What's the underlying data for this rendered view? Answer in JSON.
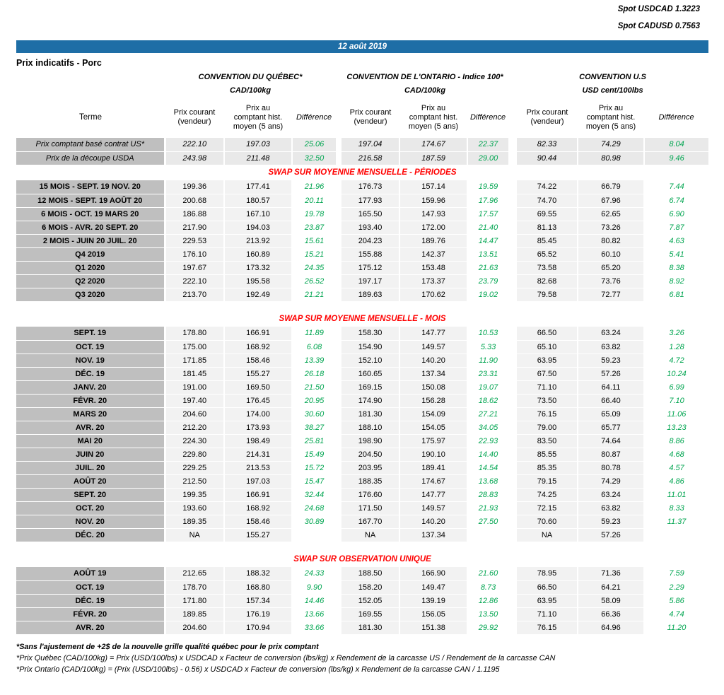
{
  "colors": {
    "banner_blue": "#1E6EA6",
    "section_red": "#FF0000",
    "diff_green": "#00A550",
    "label_gray": "#BFBFBF",
    "cell_gray": "#F2F2F2",
    "summary_gray": "#E9E9E9"
  },
  "spot": {
    "usdcad": "Spot USDCAD 1.3223",
    "cadusd": "Spot CADUSD 0.7563"
  },
  "date_banner": "12 août 2019",
  "page_title": "Prix indicatifs - Porc",
  "conventions": [
    {
      "title": "CONVENTION DU QUÉBEC*",
      "unit": "CAD/100kg"
    },
    {
      "title": "CONVENTION DE L'ONTARIO - Indice 100*",
      "unit": "CAD/100kg"
    },
    {
      "title": "CONVENTION U.S",
      "unit": "USD cent/100lbs"
    }
  ],
  "column_headers": {
    "terme": "Terme",
    "prix_courant": "Prix courant\n(vendeur)",
    "prix_comptant": "Prix au\ncomptant hist.\nmoyen (5 ans)",
    "difference": "Différence"
  },
  "summary_rows": [
    {
      "label": "Prix comptant basé contrat US*",
      "values": [
        "222.10",
        "197.03",
        "25.06",
        "197.04",
        "174.67",
        "22.37",
        "82.33",
        "74.29",
        "8.04"
      ]
    },
    {
      "label": "Prix de la découpe USDA",
      "values": [
        "243.98",
        "211.48",
        "32.50",
        "216.58",
        "187.59",
        "29.00",
        "90.44",
        "80.98",
        "9.46"
      ]
    }
  ],
  "sections": [
    {
      "title": "SWAP SUR MOYENNE MENSUELLE - PÉRIODES",
      "rows": [
        {
          "label": "15 MOIS -  SEPT. 19 NOV. 20",
          "values": [
            "199.36",
            "177.41",
            "21.96",
            "176.73",
            "157.14",
            "19.59",
            "74.22",
            "66.79",
            "7.44"
          ]
        },
        {
          "label": "12 MOIS -  SEPT. 19 AOÛT 20",
          "values": [
            "200.68",
            "180.57",
            "20.11",
            "177.93",
            "159.96",
            "17.96",
            "74.70",
            "67.96",
            "6.74"
          ]
        },
        {
          "label": "6 MOIS -  OCT. 19 MARS 20",
          "values": [
            "186.88",
            "167.10",
            "19.78",
            "165.50",
            "147.93",
            "17.57",
            "69.55",
            "62.65",
            "6.90"
          ]
        },
        {
          "label": "6 MOIS -  AVR. 20 SEPT. 20",
          "values": [
            "217.90",
            "194.03",
            "23.87",
            "193.40",
            "172.00",
            "21.40",
            "81.13",
            "73.26",
            "7.87"
          ]
        },
        {
          "label": "2 MOIS -  JUIN 20  JUIL. 20",
          "values": [
            "229.53",
            "213.92",
            "15.61",
            "204.23",
            "189.76",
            "14.47",
            "85.45",
            "80.82",
            "4.63"
          ]
        },
        {
          "label": "Q4 2019",
          "values": [
            "176.10",
            "160.89",
            "15.21",
            "155.88",
            "142.37",
            "13.51",
            "65.52",
            "60.10",
            "5.41"
          ]
        },
        {
          "label": "Q1 2020",
          "values": [
            "197.67",
            "173.32",
            "24.35",
            "175.12",
            "153.48",
            "21.63",
            "73.58",
            "65.20",
            "8.38"
          ]
        },
        {
          "label": "Q2 2020",
          "values": [
            "222.10",
            "195.58",
            "26.52",
            "197.17",
            "173.37",
            "23.79",
            "82.68",
            "73.76",
            "8.92"
          ]
        },
        {
          "label": "Q3 2020",
          "values": [
            "213.70",
            "192.49",
            "21.21",
            "189.63",
            "170.62",
            "19.02",
            "79.58",
            "72.77",
            "6.81"
          ]
        }
      ]
    },
    {
      "title": "SWAP SUR MOYENNE MENSUELLE - MOIS",
      "rows": [
        {
          "label": "SEPT. 19",
          "values": [
            "178.80",
            "166.91",
            "11.89",
            "158.30",
            "147.77",
            "10.53",
            "66.50",
            "63.24",
            "3.26"
          ]
        },
        {
          "label": "OCT. 19",
          "values": [
            "175.00",
            "168.92",
            "6.08",
            "154.90",
            "149.57",
            "5.33",
            "65.10",
            "63.82",
            "1.28"
          ]
        },
        {
          "label": "NOV. 19",
          "values": [
            "171.85",
            "158.46",
            "13.39",
            "152.10",
            "140.20",
            "11.90",
            "63.95",
            "59.23",
            "4.72"
          ]
        },
        {
          "label": "DÉC. 19",
          "values": [
            "181.45",
            "155.27",
            "26.18",
            "160.65",
            "137.34",
            "23.31",
            "67.50",
            "57.26",
            "10.24"
          ]
        },
        {
          "label": "JANV. 20",
          "values": [
            "191.00",
            "169.50",
            "21.50",
            "169.15",
            "150.08",
            "19.07",
            "71.10",
            "64.11",
            "6.99"
          ]
        },
        {
          "label": "FÉVR. 20",
          "values": [
            "197.40",
            "176.45",
            "20.95",
            "174.90",
            "156.28",
            "18.62",
            "73.50",
            "66.40",
            "7.10"
          ]
        },
        {
          "label": "MARS 20",
          "values": [
            "204.60",
            "174.00",
            "30.60",
            "181.30",
            "154.09",
            "27.21",
            "76.15",
            "65.09",
            "11.06"
          ]
        },
        {
          "label": "AVR. 20",
          "values": [
            "212.20",
            "173.93",
            "38.27",
            "188.10",
            "154.05",
            "34.05",
            "79.00",
            "65.77",
            "13.23"
          ]
        },
        {
          "label": "MAI 20",
          "values": [
            "224.30",
            "198.49",
            "25.81",
            "198.90",
            "175.97",
            "22.93",
            "83.50",
            "74.64",
            "8.86"
          ]
        },
        {
          "label": "JUIN 20",
          "values": [
            "229.80",
            "214.31",
            "15.49",
            "204.50",
            "190.10",
            "14.40",
            "85.55",
            "80.87",
            "4.68"
          ]
        },
        {
          "label": "JUIL. 20",
          "values": [
            "229.25",
            "213.53",
            "15.72",
            "203.95",
            "189.41",
            "14.54",
            "85.35",
            "80.78",
            "4.57"
          ]
        },
        {
          "label": "AOÛT 20",
          "values": [
            "212.50",
            "197.03",
            "15.47",
            "188.35",
            "174.67",
            "13.68",
            "79.15",
            "74.29",
            "4.86"
          ]
        },
        {
          "label": "SEPT. 20",
          "values": [
            "199.35",
            "166.91",
            "32.44",
            "176.60",
            "147.77",
            "28.83",
            "74.25",
            "63.24",
            "11.01"
          ]
        },
        {
          "label": "OCT. 20",
          "values": [
            "193.60",
            "168.92",
            "24.68",
            "171.50",
            "149.57",
            "21.93",
            "72.15",
            "63.82",
            "8.33"
          ]
        },
        {
          "label": "NOV. 20",
          "values": [
            "189.35",
            "158.46",
            "30.89",
            "167.70",
            "140.20",
            "27.50",
            "70.60",
            "59.23",
            "11.37"
          ]
        },
        {
          "label": "DÉC. 20",
          "values": [
            "NA",
            "155.27",
            "",
            "NA",
            "137.34",
            "",
            "NA",
            "57.26",
            ""
          ]
        }
      ]
    },
    {
      "title": "SWAP SUR OBSERVATION UNIQUE",
      "rows": [
        {
          "label": "AOÛT 19",
          "values": [
            "212.65",
            "188.32",
            "24.33",
            "188.50",
            "166.90",
            "21.60",
            "78.95",
            "71.36",
            "7.59"
          ]
        },
        {
          "label": "OCT. 19",
          "values": [
            "178.70",
            "168.80",
            "9.90",
            "158.20",
            "149.47",
            "8.73",
            "66.50",
            "64.21",
            "2.29"
          ]
        },
        {
          "label": "DÉC. 19",
          "values": [
            "171.80",
            "157.34",
            "14.46",
            "152.05",
            "139.19",
            "12.86",
            "63.95",
            "58.09",
            "5.86"
          ]
        },
        {
          "label": "FÉVR. 20",
          "values": [
            "189.85",
            "176.19",
            "13.66",
            "169.55",
            "156.05",
            "13.50",
            "71.10",
            "66.36",
            "4.74"
          ]
        },
        {
          "label": "AVR. 20",
          "values": [
            "204.60",
            "170.94",
            "33.66",
            "181.30",
            "151.38",
            "29.92",
            "76.15",
            "64.96",
            "11.20"
          ]
        }
      ]
    }
  ],
  "footnotes": [
    "*Sans l'ajustement de +2$ de la nouvelle grille qualité québec pour le prix comptant",
    "*Prix Québec (CAD/100kg) = Prix (USD/100lbs) x USDCAD x Facteur de conversion (lbs/kg) x Rendement de la carcasse US / Rendement de la carcasse CAN",
    "*Prix Ontario (CAD/100kg) = (Prix (USD/100lbs) - 0.56) x USDCAD x Facteur de conversion (lbs/kg) x Rendement de la carcasse CAN / 1.1195"
  ]
}
